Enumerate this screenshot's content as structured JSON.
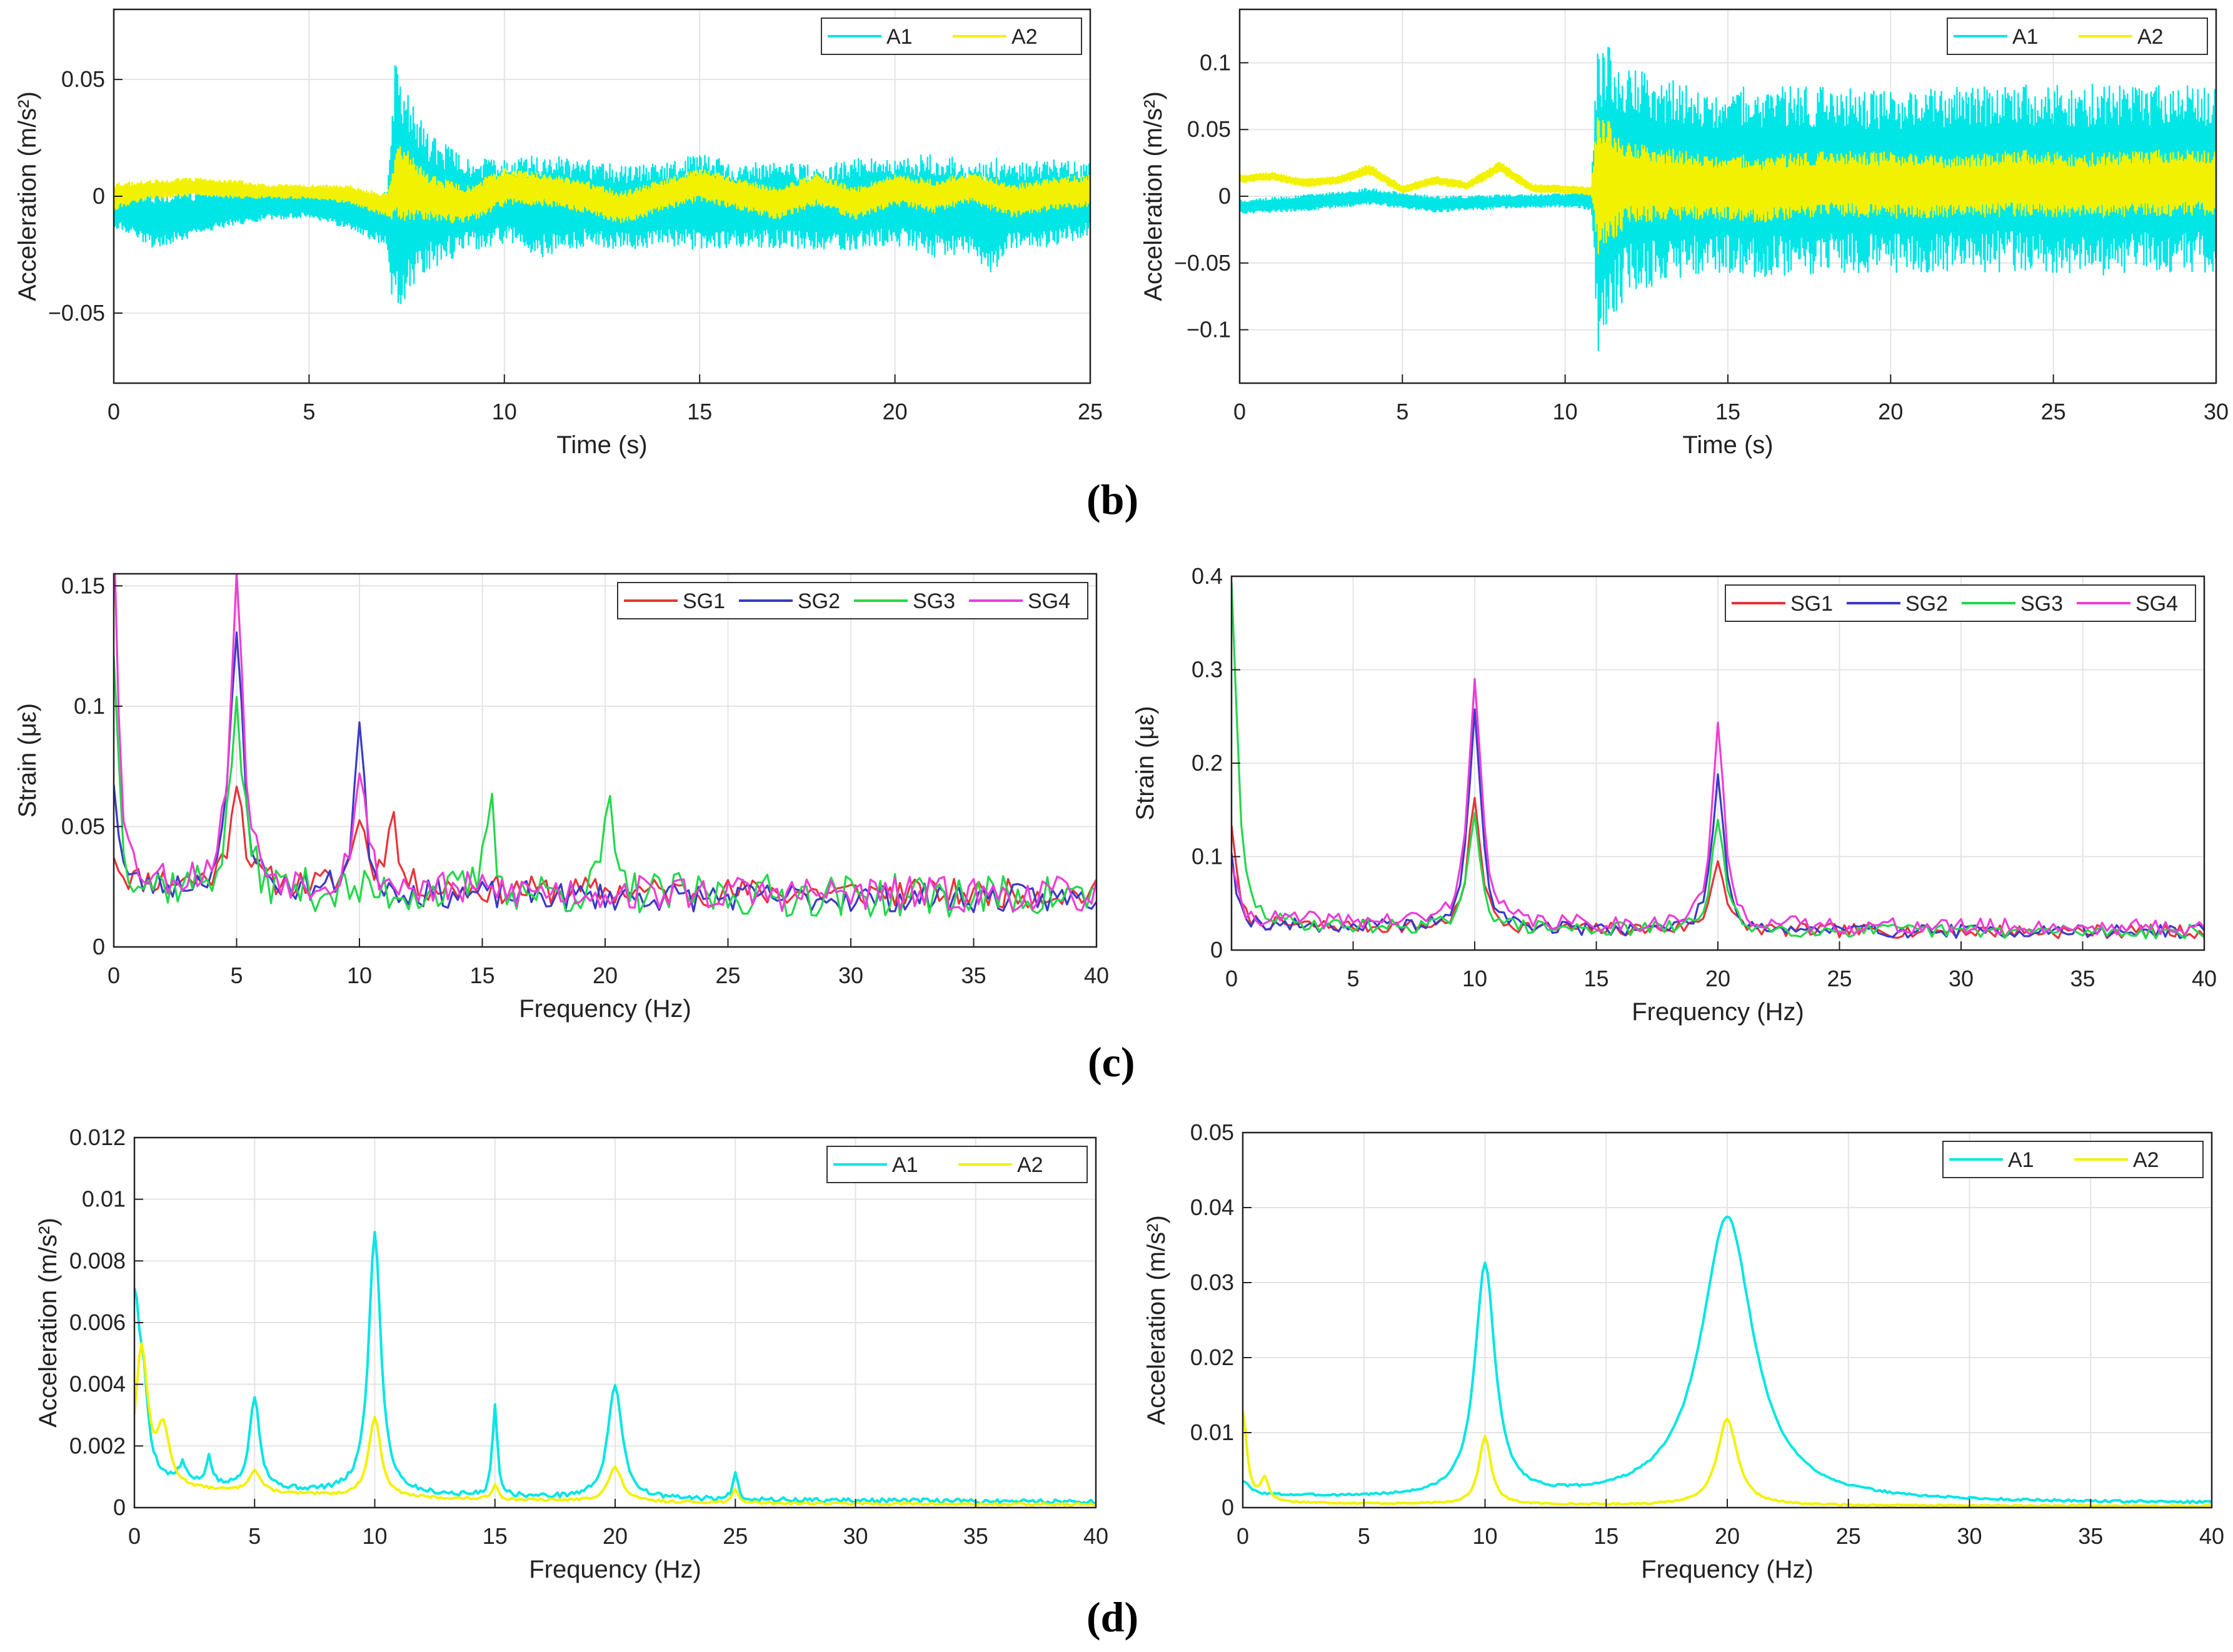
{
  "panel_labels": [
    "(b)",
    "(c)",
    "(d)"
  ],
  "colors": {
    "A1": "#00e5e5",
    "A2": "#f2f200",
    "SG1": "#e8333a",
    "SG2": "#3a3ac8",
    "SG3": "#22d84a",
    "SG4": "#ee3cd8",
    "grid": "#e4e4e4",
    "axis": "#222222"
  },
  "chart_data": [
    {
      "id": "b-left",
      "type": "line",
      "panel": "(b)",
      "xlabel": "Time (s)",
      "ylabel": "Acceleration (m/s²)",
      "xlim": [
        0,
        25
      ],
      "ylim": [
        -0.08,
        0.08
      ],
      "xticks": [
        0,
        5,
        10,
        15,
        20,
        25
      ],
      "xticklabels": [
        "0",
        "5",
        "10",
        "15",
        "20",
        "25"
      ],
      "yticks": [
        -0.05,
        0,
        0.05
      ],
      "yticklabels": [
        "−0.05",
        "0",
        "0.05"
      ],
      "legend": [
        "A1",
        "A2"
      ],
      "legend_position": "top-right",
      "series": [
        {
          "name": "A1",
          "style": "band",
          "x": [
            0,
            1,
            2,
            3,
            4,
            5,
            6,
            7,
            7.2,
            7.5,
            8,
            8.5,
            9,
            10,
            11,
            12,
            13,
            14,
            15,
            16,
            17,
            18,
            19,
            20,
            21,
            22,
            22.5,
            23,
            24,
            25
          ],
          "mid": [
            -0.005,
            -0.01,
            -0.008,
            -0.005,
            -0.004,
            -0.003,
            -0.006,
            -0.01,
            0.0,
            0.0,
            -0.002,
            -0.003,
            -0.004,
            -0.002,
            -0.004,
            -0.003,
            -0.005,
            -0.004,
            -0.002,
            -0.004,
            -0.003,
            -0.005,
            -0.003,
            -0.002,
            -0.004,
            -0.005,
            -0.008,
            -0.004,
            -0.003,
            -0.002
          ],
          "amp": [
            0.008,
            0.012,
            0.01,
            0.008,
            0.006,
            0.006,
            0.008,
            0.012,
            0.06,
            0.045,
            0.03,
            0.025,
            0.02,
            0.018,
            0.022,
            0.019,
            0.018,
            0.018,
            0.021,
            0.018,
            0.019,
            0.018,
            0.02,
            0.019,
            0.022,
            0.021,
            0.025,
            0.018,
            0.019,
            0.016
          ]
        },
        {
          "name": "A2",
          "style": "band",
          "x": [
            0,
            1,
            2,
            3,
            4,
            5,
            6,
            7,
            7.3,
            8,
            9,
            10,
            11,
            12,
            13,
            14,
            15,
            16,
            17,
            18,
            19,
            20,
            21,
            22,
            23,
            24,
            25
          ],
          "mid": [
            0.0,
            0.003,
            0.004,
            0.003,
            0.002,
            0.002,
            0.001,
            -0.004,
            0.006,
            0.0,
            -0.004,
            0.004,
            0.003,
            0.0,
            -0.005,
            0.0,
            0.005,
            0.001,
            -0.003,
            0.003,
            -0.003,
            0.003,
            0.0,
            0.004,
            -0.002,
            0.001,
            0.002
          ],
          "amp": [
            0.006,
            0.004,
            0.004,
            0.004,
            0.003,
            0.003,
            0.004,
            0.005,
            0.018,
            0.01,
            0.008,
            0.008,
            0.007,
            0.007,
            0.007,
            0.007,
            0.007,
            0.007,
            0.007,
            0.007,
            0.007,
            0.007,
            0.007,
            0.007,
            0.007,
            0.007,
            0.007
          ]
        }
      ]
    },
    {
      "id": "b-right",
      "type": "line",
      "panel": "(b)",
      "xlabel": "Time (s)",
      "ylabel": "Acceleration (m/s²)",
      "xlim": [
        0,
        30
      ],
      "ylim": [
        -0.14,
        0.14
      ],
      "xticks": [
        0,
        5,
        10,
        15,
        20,
        25,
        30
      ],
      "xticklabels": [
        "0",
        "5",
        "10",
        "15",
        "20",
        "25",
        "30"
      ],
      "yticks": [
        -0.1,
        -0.05,
        0,
        0.05,
        0.1
      ],
      "yticklabels": [
        "−0.1",
        "−0.05",
        "0",
        "0.05",
        "0.1"
      ],
      "legend": [
        "A1",
        "A2"
      ],
      "legend_position": "top-right",
      "series": [
        {
          "name": "A1",
          "style": "band",
          "x": [
            0,
            2,
            4,
            6,
            8,
            10,
            10.8,
            11.0,
            11.5,
            12,
            14,
            16,
            18,
            20,
            22,
            24,
            26,
            28,
            30
          ],
          "mid": [
            -0.008,
            -0.005,
            0.0,
            -0.006,
            -0.004,
            -0.003,
            -0.002,
            0.0,
            0.01,
            0.012,
            0.012,
            0.01,
            0.013,
            0.01,
            0.012,
            0.014,
            0.012,
            0.014,
            0.012
          ],
          "amp": [
            0.005,
            0.006,
            0.006,
            0.006,
            0.005,
            0.005,
            0.008,
            0.12,
            0.1,
            0.085,
            0.07,
            0.072,
            0.07,
            0.068,
            0.07,
            0.07,
            0.072,
            0.07,
            0.07
          ]
        },
        {
          "name": "A2",
          "style": "band",
          "x": [
            0,
            1,
            2,
            3,
            4,
            5,
            6,
            7,
            8,
            9,
            10,
            10.8,
            11.0,
            12,
            14,
            16,
            18,
            20,
            22,
            24,
            26,
            28,
            30
          ],
          "mid": [
            0.013,
            0.015,
            0.01,
            0.012,
            0.02,
            0.005,
            0.012,
            0.008,
            0.022,
            0.006,
            0.005,
            0.004,
            0.01,
            0.01,
            0.008,
            0.005,
            0.01,
            0.008,
            0.007,
            0.01,
            0.008,
            0.01,
            0.01
          ],
          "amp": [
            0.003,
            0.003,
            0.003,
            0.003,
            0.004,
            0.003,
            0.003,
            0.003,
            0.004,
            0.003,
            0.003,
            0.003,
            0.055,
            0.03,
            0.025,
            0.025,
            0.024,
            0.025,
            0.023,
            0.025,
            0.024,
            0.025,
            0.024
          ]
        }
      ]
    },
    {
      "id": "c-left",
      "type": "line",
      "panel": "(c)",
      "xlabel": "Frequency (Hz)",
      "ylabel": "Strain (με)",
      "xlim": [
        0,
        40
      ],
      "ylim": [
        0,
        0.155
      ],
      "xticks": [
        0,
        5,
        10,
        15,
        20,
        25,
        30,
        35,
        40
      ],
      "xticklabels": [
        "0",
        "5",
        "10",
        "15",
        "20",
        "25",
        "30",
        "35",
        "40"
      ],
      "yticks": [
        0,
        0.05,
        0.1,
        0.15
      ],
      "yticklabels": [
        "0",
        "0.05",
        "0.1",
        "0.15"
      ],
      "legend": [
        "SG1",
        "SG2",
        "SG3",
        "SG4"
      ],
      "legend_position": "top-right",
      "series": [
        {
          "name": "SG1",
          "style": "noisy",
          "base": 0.016,
          "decay": 0.006,
          "noise": 0.012,
          "seed": 11,
          "peaks": [
            [
              0,
              0.012,
              0.2
            ],
            [
              5,
              0.045,
              0.3
            ],
            [
              10,
              0.03,
              0.3
            ],
            [
              11.3,
              0.035,
              0.2
            ]
          ]
        },
        {
          "name": "SG2",
          "style": "noisy",
          "base": 0.014,
          "decay": 0.005,
          "noise": 0.012,
          "seed": 23,
          "peaks": [
            [
              0,
              0.045,
              0.2
            ],
            [
              5,
              0.108,
              0.3
            ],
            [
              10,
              0.07,
              0.25
            ]
          ]
        },
        {
          "name": "SG3",
          "style": "noisy",
          "base": 0.012,
          "decay": 0.004,
          "noise": 0.018,
          "seed": 37,
          "peaks": [
            [
              0,
              0.1,
              0.2
            ],
            [
              5,
              0.078,
              0.3
            ],
            [
              15.3,
              0.042,
              0.2
            ],
            [
              20.1,
              0.042,
              0.2
            ]
          ]
        },
        {
          "name": "SG4",
          "style": "noisy",
          "base": 0.014,
          "decay": 0.006,
          "noise": 0.015,
          "seed": 53,
          "peaks": [
            [
              0,
              0.15,
              0.2
            ],
            [
              5,
              0.127,
              0.3
            ],
            [
              10,
              0.05,
              0.3
            ]
          ]
        }
      ]
    },
    {
      "id": "c-right",
      "type": "line",
      "panel": "(c)",
      "xlabel": "Frequency (Hz)",
      "ylabel": "Strain (με)",
      "xlim": [
        0,
        40
      ],
      "ylim": [
        0,
        0.4
      ],
      "xticks": [
        0,
        5,
        10,
        15,
        20,
        25,
        30,
        35,
        40
      ],
      "xticklabels": [
        "0",
        "5",
        "10",
        "15",
        "20",
        "25",
        "30",
        "35",
        "40"
      ],
      "yticks": [
        0,
        0.1,
        0.2,
        0.3,
        0.4
      ],
      "yticklabels": [
        "0",
        "0.1",
        "0.2",
        "0.3",
        "0.4"
      ],
      "legend": [
        "SG1",
        "SG2",
        "SG3",
        "SG4"
      ],
      "legend_position": "top-right",
      "series": [
        {
          "name": "SG1",
          "style": "noisy",
          "base": 0.012,
          "decay": 0.008,
          "noise": 0.015,
          "seed": 7,
          "peaks": [
            [
              0,
              0.11,
              0.2
            ],
            [
              10,
              0.14,
              0.3
            ],
            [
              20,
              0.08,
              0.3
            ]
          ]
        },
        {
          "name": "SG2",
          "style": "noisy",
          "base": 0.012,
          "decay": 0.008,
          "noise": 0.015,
          "seed": 19,
          "peaks": [
            [
              0,
              0.08,
              0.2
            ],
            [
              10,
              0.23,
              0.3
            ],
            [
              20,
              0.165,
              0.3
            ]
          ]
        },
        {
          "name": "SG3",
          "style": "noisy",
          "base": 0.012,
          "decay": 0.008,
          "noise": 0.015,
          "seed": 29,
          "peaks": [
            [
              0,
              0.37,
              0.25
            ],
            [
              10,
              0.12,
              0.3
            ],
            [
              20,
              0.12,
              0.3
            ]
          ]
        },
        {
          "name": "SG4",
          "style": "noisy",
          "base": 0.015,
          "decay": 0.01,
          "noise": 0.018,
          "seed": 41,
          "peaks": [
            [
              0,
              0.06,
              0.2
            ],
            [
              10,
              0.27,
              0.3
            ],
            [
              20,
              0.21,
              0.3
            ]
          ]
        }
      ]
    },
    {
      "id": "d-left",
      "type": "line",
      "panel": "(d)",
      "xlabel": "Frequency (Hz)",
      "ylabel": "Acceleration (m/s²)",
      "xlim": [
        0,
        40
      ],
      "ylim": [
        0,
        0.012
      ],
      "xticks": [
        0,
        5,
        10,
        15,
        20,
        25,
        30,
        35,
        40
      ],
      "xticklabels": [
        "0",
        "5",
        "10",
        "15",
        "20",
        "25",
        "30",
        "35",
        "40"
      ],
      "yticks": [
        0,
        0.002,
        0.004,
        0.006,
        0.008,
        0.01,
        0.012
      ],
      "yticklabels": [
        "0",
        "0.002",
        "0.004",
        "0.006",
        "0.008",
        "0.01",
        "0.012"
      ],
      "legend": [
        "A1",
        "A2"
      ],
      "legend_position": "top-right",
      "series": [
        {
          "name": "A1",
          "style": "spectrum",
          "base": 0.0001,
          "decay": 0.0006,
          "noise": 0.00015,
          "seed": 5,
          "peaks": [
            [
              0,
              0.006,
              0.3
            ],
            [
              0.4,
              0.0018,
              0.2
            ],
            [
              2,
              0.0006,
              0.2
            ],
            [
              3.1,
              0.0009,
              0.15
            ],
            [
              5,
              0.003,
              0.25
            ],
            [
              10,
              0.0085,
              0.3
            ],
            [
              15,
              0.003,
              0.12
            ],
            [
              20,
              0.0037,
              0.35
            ],
            [
              25,
              0.0009,
              0.12
            ]
          ]
        },
        {
          "name": "A2",
          "style": "spectrum",
          "base": 4e-05,
          "decay": 0.0006,
          "noise": 8e-05,
          "seed": 13,
          "peaks": [
            [
              0.3,
              0.0045,
              0.3
            ],
            [
              1.2,
              0.0018,
              0.3
            ],
            [
              5,
              0.0007,
              0.3
            ],
            [
              10,
              0.0026,
              0.3
            ],
            [
              15,
              0.0005,
              0.15
            ],
            [
              20,
              0.0011,
              0.35
            ],
            [
              25,
              0.0004,
              0.15
            ]
          ]
        }
      ]
    },
    {
      "id": "d-right",
      "type": "line",
      "panel": "(d)",
      "xlabel": "Frequency (Hz)",
      "ylabel": "Acceleration (m/s²)",
      "xlim": [
        0,
        40
      ],
      "ylim": [
        0,
        0.05
      ],
      "xticks": [
        0,
        5,
        10,
        15,
        20,
        25,
        30,
        35,
        40
      ],
      "xticklabels": [
        "0",
        "5",
        "10",
        "15",
        "20",
        "25",
        "30",
        "35",
        "40"
      ],
      "yticks": [
        0,
        0.01,
        0.02,
        0.03,
        0.04,
        0.05
      ],
      "yticklabels": [
        "0",
        "0.01",
        "0.02",
        "0.03",
        "0.04",
        "0.05"
      ],
      "legend": [
        "A1",
        "A2"
      ],
      "legend_position": "top-right",
      "series": [
        {
          "name": "A1",
          "style": "spectrum",
          "base": 0.0004,
          "decay": 0.001,
          "noise": 0.0003,
          "seed": 3,
          "peaks": [
            [
              0,
              0.0018,
              0.3
            ],
            [
              10,
              0.031,
              0.5
            ],
            [
              20,
              0.038,
              1.3
            ]
          ]
        },
        {
          "name": "A2",
          "style": "spectrum",
          "base": 0.0001,
          "decay": 0.0005,
          "noise": 0.0002,
          "seed": 17,
          "peaks": [
            [
              0,
              0.012,
              0.2
            ],
            [
              0.9,
              0.003,
              0.2
            ],
            [
              10,
              0.009,
              0.3
            ],
            [
              20,
              0.0115,
              0.5
            ]
          ]
        }
      ]
    }
  ]
}
